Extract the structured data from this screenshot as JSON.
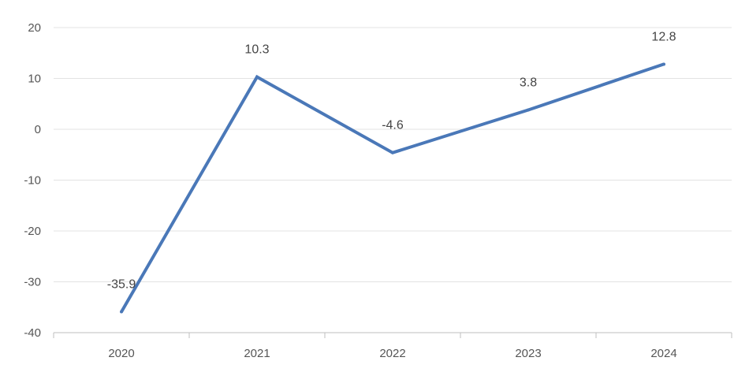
{
  "chart_data": {
    "type": "line",
    "categories": [
      "2020",
      "2021",
      "2022",
      "2023",
      "2024"
    ],
    "series": [
      {
        "values": [
          -35.9,
          10.3,
          -4.6,
          3.8,
          12.8
        ]
      }
    ],
    "data_labels": [
      "-35.9",
      "10.3",
      "-4.6",
      "3.8",
      "12.8"
    ],
    "ylim": [
      -40,
      20
    ],
    "yticks": [
      20,
      10,
      0,
      -10,
      -20,
      -30,
      -40
    ],
    "ytick_labels": [
      "20",
      "10",
      "0",
      "-10",
      "-20",
      "-30",
      "-40"
    ],
    "grid": true,
    "legend": "none",
    "colors": {
      "line": "#4a78b8",
      "grid": "#e3e3e3",
      "axis": "#bfbfbf",
      "text": "#555555",
      "label": "#444444"
    }
  }
}
